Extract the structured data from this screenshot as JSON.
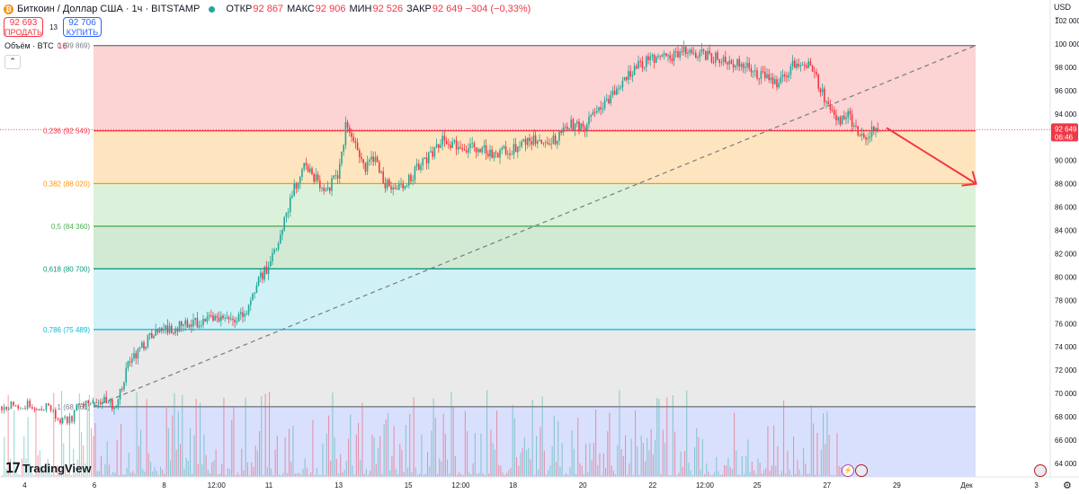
{
  "header": {
    "coin_icon": "bitcoin-icon",
    "title": "Биткоин / Доллар США · 1ч · BITSTAMP",
    "ohlc": [
      {
        "key": "ОТКР",
        "value": "92 867"
      },
      {
        "key": "МАКС",
        "value": "92 906"
      },
      {
        "key": "МИН",
        "value": "92 526"
      },
      {
        "key": "ЗАКР",
        "value": "92 649 −304 (−0,33%)"
      }
    ]
  },
  "trade": {
    "sell_price": "92 693",
    "sell_label": "ПРОДАТЬ",
    "spread": "13",
    "buy_price": "92 706",
    "buy_label": "КУПИТЬ"
  },
  "volume": {
    "label": "Объём · BTC",
    "value": "16"
  },
  "currency": "USD",
  "branding": "TradingView",
  "colors": {
    "bull": "#26a69a",
    "bear": "#f23645",
    "accent": "#2962ff"
  },
  "chart_data": {
    "type": "candlestick",
    "ylim": [
      63500,
      102000
    ],
    "y_ticks": [
      64000,
      66000,
      68000,
      70000,
      72000,
      74000,
      76000,
      78000,
      80000,
      82000,
      84000,
      86000,
      88000,
      90000,
      92000,
      94000,
      96000,
      98000,
      100000,
      102000
    ],
    "y_tick_labels": [
      "64 000",
      "66 000",
      "68 000",
      "70 000",
      "72 000",
      "74 000",
      "76 000",
      "78 000",
      "80 000",
      "82 000",
      "84 000",
      "86 000",
      "88 000",
      "90 000",
      "92 000",
      "94 000",
      "96 000",
      "98 000",
      "100 000",
      "102 000"
    ],
    "x_ticks": [
      "4",
      "6",
      "8",
      "12:00",
      "11",
      "13",
      "15",
      "12:00",
      "18",
      "20",
      "22",
      "12:00",
      "25",
      "27",
      "29",
      "Дек",
      "3"
    ],
    "x_tick_bar_index": [
      -2,
      0,
      2,
      3.5,
      5,
      7,
      9,
      10.5,
      12,
      14,
      16,
      17.5,
      19,
      21,
      23,
      25,
      27
    ],
    "last_price": "92 649",
    "countdown": "06:46",
    "close_path": [
      [
        0,
        68900
      ],
      [
        0.3,
        69300
      ],
      [
        0.6,
        69000
      ],
      [
        1,
        72800
      ],
      [
        1.5,
        74600
      ],
      [
        2,
        75400
      ],
      [
        2.5,
        75900
      ],
      [
        3,
        76000
      ],
      [
        3.5,
        76400
      ],
      [
        4,
        76300
      ],
      [
        4.3,
        76600
      ],
      [
        4.6,
        79200
      ],
      [
        5,
        81000
      ],
      [
        5.3,
        83000
      ],
      [
        5.6,
        86500
      ],
      [
        6,
        89800
      ],
      [
        6.3,
        88500
      ],
      [
        6.6,
        87400
      ],
      [
        7,
        88700
      ],
      [
        7.2,
        93000
      ],
      [
        7.5,
        91000
      ],
      [
        7.8,
        89300
      ],
      [
        8,
        90300
      ],
      [
        8.3,
        88100
      ],
      [
        8.6,
        87500
      ],
      [
        9,
        88200
      ],
      [
        9.3,
        89500
      ],
      [
        9.6,
        90400
      ],
      [
        10,
        91700
      ],
      [
        10.5,
        91200
      ],
      [
        11,
        91000
      ],
      [
        11.5,
        90500
      ],
      [
        12,
        91000
      ],
      [
        12.5,
        91800
      ],
      [
        13,
        91500
      ],
      [
        13.3,
        92000
      ],
      [
        13.6,
        93100
      ],
      [
        14,
        92700
      ],
      [
        14.3,
        93800
      ],
      [
        14.6,
        94600
      ],
      [
        15,
        96000
      ],
      [
        15.3,
        97500
      ],
      [
        15.6,
        98300
      ],
      [
        16,
        98800
      ],
      [
        16.5,
        98900
      ],
      [
        17,
        99500
      ],
      [
        17.5,
        99000
      ],
      [
        18,
        98700
      ],
      [
        18.5,
        98300
      ],
      [
        19,
        97500
      ],
      [
        19.3,
        97000
      ],
      [
        19.6,
        96400
      ],
      [
        20,
        98100
      ],
      [
        20.3,
        98600
      ],
      [
        20.6,
        97600
      ],
      [
        21,
        94900
      ],
      [
        21.3,
        93200
      ],
      [
        21.6,
        93800
      ],
      [
        22,
        91900
      ],
      [
        22.3,
        92600
      ],
      [
        22.5,
        92649
      ]
    ],
    "bull_color": "#26a69a",
    "bear_color": "#f23645",
    "fibonacci": {
      "levels": [
        {
          "label": "0",
          "value": "(99 869)",
          "price": 99869,
          "line": "#787b86",
          "fill": "#f7a9a7"
        },
        {
          "label": "0,236",
          "value": "(92 549)",
          "price": 92549,
          "line": "#f23645",
          "fill": "#ffcc80"
        },
        {
          "label": "0,382",
          "value": "(88 020)",
          "price": 88020,
          "line": "#ff9800",
          "fill": "#b9e4b4"
        },
        {
          "label": "0,5",
          "value": "(84 360)",
          "price": 84360,
          "line": "#4caf50",
          "fill": "#a5d6a7"
        },
        {
          "label": "0,618",
          "value": "(80 700)",
          "price": 80700,
          "line": "#089981",
          "fill": "#a2e6ee"
        },
        {
          "label": "0,786",
          "value": "(75 489)",
          "price": 75489,
          "line": "#00bcd4",
          "fill": "#d6d6d6"
        },
        {
          "label": "1",
          "value": "(68 861)",
          "price": 68861,
          "line": "#787b86",
          "fill": "#b3c2fb"
        }
      ]
    },
    "arrow": {
      "from": [
        22.5,
        92800
      ],
      "to": [
        24.5,
        88000
      ],
      "color": "#f23645"
    }
  }
}
